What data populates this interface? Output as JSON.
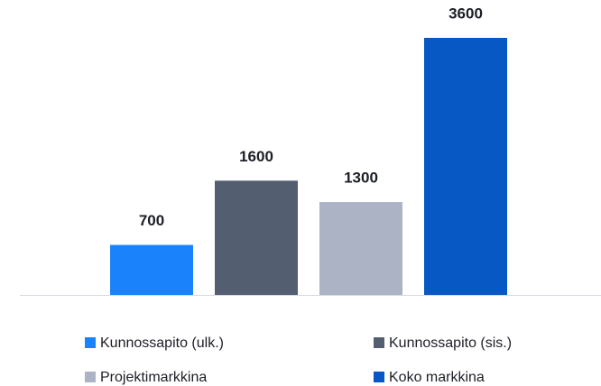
{
  "chart_data": {
    "type": "bar",
    "series": [
      {
        "name": "Kunnossapito (ulk.)",
        "color": "#1a82fb",
        "values": [
          700
        ]
      },
      {
        "name": "Kunnossapito (sis.)",
        "color": "#535e70",
        "values": [
          1600
        ]
      },
      {
        "name": "Projektimarkkina",
        "color": "#abb3c5",
        "values": [
          1300
        ]
      },
      {
        "name": "Koko markkina",
        "color": "#0757c4",
        "values": [
          3600
        ]
      }
    ],
    "ylim": [
      0,
      3600
    ]
  }
}
